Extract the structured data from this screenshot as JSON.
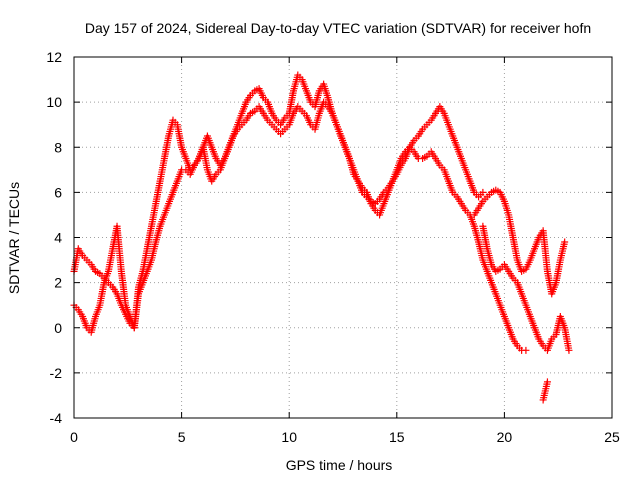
{
  "chart_data": {
    "type": "scatter",
    "title": "Day 157 of 2024, Sidereal Day-to-day VTEC variation (SDTVAR) for receiver hofn",
    "xlabel": "GPS time / hours",
    "ylabel": "SDTVAR / TECUs",
    "xlim": [
      0,
      25
    ],
    "ylim": [
      -4,
      12
    ],
    "xticks": [
      "0",
      "5",
      "10",
      "15",
      "20",
      "25"
    ],
    "yticks": [
      "-4",
      "-2",
      "0",
      "2",
      "4",
      "6",
      "8",
      "10",
      "12"
    ],
    "grid": true,
    "marker": "+",
    "color": "#ff0000",
    "series": [
      {
        "x": [
          0.0,
          0.2,
          0.4,
          0.6,
          0.8,
          1.0,
          1.2,
          1.4,
          1.6,
          1.8,
          2.0,
          2.2,
          2.4,
          2.6,
          2.8,
          3.0,
          3.2,
          3.4,
          3.6,
          3.8,
          4.0,
          4.2,
          4.4,
          4.6,
          4.8,
          5.0,
          5.2,
          5.4,
          5.6,
          5.8,
          6.0,
          6.2,
          6.4,
          6.6,
          6.8,
          7.0,
          7.2,
          7.4,
          7.6,
          7.8,
          8.0,
          8.2,
          8.4,
          8.6,
          8.8,
          9.0,
          9.2,
          9.4,
          9.6,
          9.8,
          10.0,
          10.2,
          10.4,
          10.6,
          10.8,
          11.0,
          11.2,
          11.4,
          11.6,
          11.8,
          12.0,
          12.2,
          12.4,
          12.6,
          12.8,
          13.0,
          13.2,
          13.4,
          13.6,
          13.8,
          14.0,
          14.2,
          14.4,
          14.6,
          14.8,
          15.0,
          15.2,
          15.4,
          15.6,
          15.8,
          16.0,
          16.2,
          16.4,
          16.6,
          16.8,
          17.0,
          17.2,
          17.4,
          17.6,
          17.8,
          18.0,
          18.2,
          18.4,
          18.6,
          18.8,
          19.0
        ],
        "y": [
          2.5,
          3.5,
          3.2,
          3.0,
          2.8,
          2.5,
          2.4,
          2.2,
          2.0,
          1.8,
          1.5,
          1.0,
          0.6,
          0.2,
          0.0,
          1.8,
          2.5,
          3.5,
          4.5,
          5.5,
          6.5,
          7.5,
          8.5,
          9.2,
          9.0,
          8.0,
          7.5,
          7.0,
          7.2,
          7.5,
          8.0,
          8.5,
          8.0,
          7.5,
          7.2,
          7.5,
          8.0,
          8.5,
          9.0,
          9.5,
          10.0,
          10.3,
          10.5,
          10.6,
          10.2,
          10.0,
          9.5,
          9.2,
          9.0,
          9.3,
          9.5,
          10.5,
          11.2,
          11.0,
          10.5,
          10.0,
          9.8,
          10.5,
          10.8,
          10.2,
          9.5,
          9.0,
          8.5,
          8.0,
          7.5,
          6.8,
          6.5,
          6.0,
          5.8,
          5.6,
          5.5,
          5.7,
          6.0,
          6.2,
          6.5,
          6.8,
          7.2,
          7.5,
          8.0,
          8.3,
          8.5,
          8.8,
          9.0,
          9.2,
          9.5,
          9.8,
          9.5,
          9.0,
          8.5,
          8.0,
          7.5,
          7.0,
          6.5,
          6.0,
          5.8,
          6.0
        ]
      },
      {
        "x": [
          0.0,
          0.2,
          0.4,
          0.6,
          0.8,
          1.0,
          1.2,
          1.4,
          1.6,
          1.8,
          2.0,
          2.2,
          2.4,
          2.6,
          2.8,
          3.0,
          3.2,
          3.4,
          3.6,
          3.8,
          4.0,
          4.2,
          4.4,
          4.6,
          4.8,
          5.0,
          5.2,
          5.4,
          5.6,
          5.8,
          6.0,
          6.2,
          6.4,
          6.6,
          6.8,
          7.0,
          7.2,
          7.4,
          7.6,
          7.8,
          8.0,
          8.2,
          8.4,
          8.6,
          8.8,
          9.0,
          9.2,
          9.4,
          9.6,
          9.8,
          10.0,
          10.2,
          10.4,
          10.6,
          10.8,
          11.0,
          11.2,
          11.4,
          11.6,
          11.8,
          12.0,
          12.2,
          12.4,
          12.6,
          12.8,
          13.0,
          13.2,
          13.4,
          13.6,
          13.8,
          14.0,
          14.2,
          14.4,
          14.6,
          14.8,
          15.0,
          15.2,
          15.4,
          15.6,
          15.8,
          16.0,
          16.2,
          16.4,
          16.6,
          16.8,
          17.0,
          17.2,
          17.4,
          17.6,
          17.8,
          18.0,
          18.2,
          18.4,
          18.6,
          18.8,
          19.0,
          19.2,
          19.4,
          19.6,
          19.8,
          20.0,
          20.2,
          20.4,
          20.6,
          20.8,
          21.0
        ],
        "y": [
          1.0,
          0.8,
          0.5,
          0.0,
          -0.2,
          0.5,
          1.0,
          2.0,
          2.5,
          3.5,
          4.5,
          2.5,
          1.0,
          0.5,
          0.0,
          1.5,
          2.0,
          2.5,
          3.0,
          3.8,
          4.5,
          5.0,
          5.5,
          6.0,
          6.5,
          7.0,
          7.0,
          6.8,
          7.2,
          7.5,
          8.0,
          7.0,
          6.5,
          6.8,
          7.0,
          7.5,
          8.0,
          8.5,
          8.8,
          9.0,
          9.2,
          9.5,
          9.6,
          9.8,
          9.5,
          9.2,
          9.0,
          8.8,
          8.6,
          8.8,
          9.0,
          9.5,
          9.8,
          9.6,
          9.4,
          9.0,
          8.8,
          9.5,
          10.0,
          9.8,
          9.5,
          9.0,
          8.5,
          8.0,
          7.5,
          7.0,
          6.5,
          6.2,
          6.0,
          5.5,
          5.2,
          5.0,
          5.5,
          6.0,
          6.5,
          7.0,
          7.5,
          7.8,
          8.0,
          7.8,
          7.5,
          7.5,
          7.6,
          7.8,
          7.5,
          7.2,
          7.0,
          6.5,
          6.0,
          5.8,
          5.5,
          5.2,
          5.0,
          4.5,
          3.8,
          3.0,
          2.5,
          2.0,
          1.5,
          1.0,
          0.5,
          0.0,
          -0.5,
          -0.8,
          -1.0,
          -1.0
        ]
      },
      {
        "x": [
          19.0,
          19.2,
          19.4,
          19.6,
          19.8,
          20.0,
          20.2,
          20.4,
          20.6,
          20.8,
          21.0,
          21.2,
          21.4,
          21.6,
          21.8,
          22.0,
          22.2,
          22.4,
          22.6,
          22.8,
          23.0
        ],
        "y": [
          4.5,
          3.5,
          2.8,
          2.5,
          2.6,
          2.8,
          2.5,
          2.2,
          2.0,
          1.5,
          1.0,
          0.5,
          0.0,
          -0.5,
          -0.8,
          -1.0,
          -0.5,
          -0.3,
          0.5,
          0.0,
          -1.0
        ]
      },
      {
        "x": [
          18.6,
          18.8,
          19.0,
          19.2,
          19.4,
          19.6,
          19.8,
          20.0,
          20.2,
          20.4,
          20.6,
          20.8,
          21.0,
          21.2,
          21.4,
          21.6,
          21.8,
          22.0,
          22.2,
          22.4,
          22.6,
          22.8
        ],
        "y": [
          5.0,
          5.3,
          5.6,
          5.8,
          6.0,
          6.1,
          6.0,
          5.6,
          5.0,
          4.0,
          3.0,
          2.5,
          2.6,
          3.0,
          3.5,
          4.0,
          4.3,
          2.5,
          1.5,
          2.0,
          3.0,
          3.8
        ]
      },
      {
        "x": [
          21.8,
          21.9,
          22.0
        ],
        "y": [
          -3.2,
          -2.8,
          -2.4
        ]
      }
    ]
  }
}
